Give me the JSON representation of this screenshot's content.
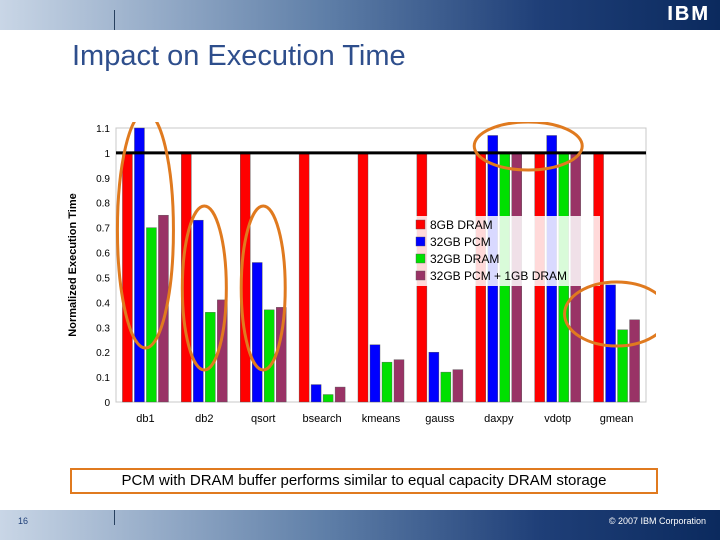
{
  "slide": {
    "title": "Impact on Execution Time",
    "caption": "PCM with DRAM buffer performs similar to equal capacity DRAM storage",
    "page_number": "16",
    "copyright": "© 2007 IBM Corporation",
    "logo": "IBM"
  },
  "colors": {
    "title": "#2e4e8c",
    "highlight_circle": "#e07a1f",
    "bar_8gb_dram": "#ff0000",
    "bar_32gb_pcm": "#0000ff",
    "bar_32gb_dram": "#00e000",
    "bar_32gb_pcm_1gb_dram": "#993366"
  },
  "chart_data": {
    "type": "bar",
    "ylabel": "Normalized Execution Time",
    "xlabel": "",
    "ylim": [
      0,
      1.1
    ],
    "yticks": [
      "0",
      "0.1",
      "0.2",
      "0.3",
      "0.4",
      "0.5",
      "0.6",
      "0.7",
      "0.8",
      "0.9",
      "1",
      "1.1"
    ],
    "grid": false,
    "legend_position": "middle-right",
    "reference_line": 1,
    "categories": [
      "db1",
      "db2",
      "qsort",
      "bsearch",
      "kmeans",
      "gauss",
      "daxpy",
      "vdotp",
      "gmean"
    ],
    "series": [
      {
        "name": "8GB DRAM",
        "values": [
          1,
          1,
          1,
          1,
          1,
          1,
          1,
          1,
          1
        ]
      },
      {
        "name": "32GB PCM",
        "values": [
          1.1,
          0.73,
          0.56,
          0.07,
          0.23,
          0.2,
          1.07,
          1.07,
          0.47
        ]
      },
      {
        "name": "32GB DRAM",
        "values": [
          0.7,
          0.36,
          0.37,
          0.03,
          0.16,
          0.12,
          1,
          1,
          0.29
        ]
      },
      {
        "name": "32GB PCM + 1GB DRAM",
        "values": [
          0.75,
          0.41,
          0.38,
          0.06,
          0.17,
          0.13,
          1,
          1,
          0.33
        ]
      }
    ]
  }
}
